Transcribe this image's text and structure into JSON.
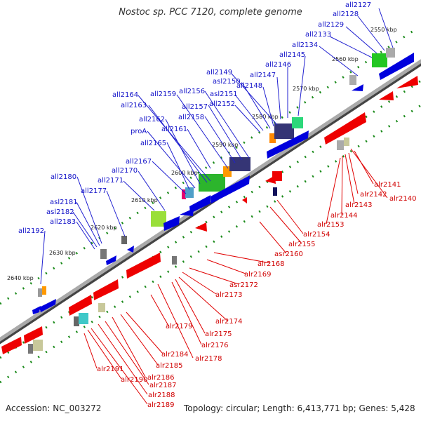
{
  "title": "Nostoc sp. PCC 7120, complete genome",
  "footer": {
    "accession": "Accession: NC_003272",
    "stats": "Topology: circular; Length: 6,413,771 bp; Genes: 5,428"
  },
  "colors": {
    "top_strand": "#0000dd",
    "bottom_strand": "#ee0000",
    "top_label": "#1010c8",
    "bottom_label": "#d00000",
    "dot": "#1a8a1a",
    "backbone": "#777777"
  },
  "kbp_ticks": [
    "2550 kbp",
    "2560 kbp",
    "2570 kbp",
    "2580 kbp",
    "2590 kbp",
    "2600 kbp",
    "2610 kbp",
    "2620 kbp",
    "2630 kbp",
    "2640 kbp"
  ],
  "top_genes": [
    "all2127",
    "all2128",
    "all2129",
    "all2133",
    "all2134",
    "all2145",
    "all2146",
    "all2147",
    "all2149",
    "asl2150",
    "all2148",
    "asl2151",
    "all2152",
    "all2156",
    "all2157",
    "all2158",
    "all2159",
    "all2164",
    "all2163",
    "all2162",
    "proA",
    "all2161",
    "all2165",
    "all2167",
    "all2170",
    "all2171",
    "all2180",
    "all2177",
    "asl2181",
    "asl2182",
    "all2183",
    "all2192"
  ],
  "bottom_genes": [
    "alr2141",
    "alr2140",
    "alr2142",
    "alr2143",
    "alr2144",
    "alr2153",
    "alr2154",
    "alr2155",
    "asr2160",
    "alr2168",
    "alr2169",
    "asr2172",
    "alr2173",
    "alr2174",
    "alr2175",
    "alr2176",
    "alr2178",
    "alr2179",
    "alr2184",
    "alr2185",
    "alr2186",
    "alr2187",
    "alr2188",
    "alr2189",
    "alr2190",
    "alr2191"
  ]
}
